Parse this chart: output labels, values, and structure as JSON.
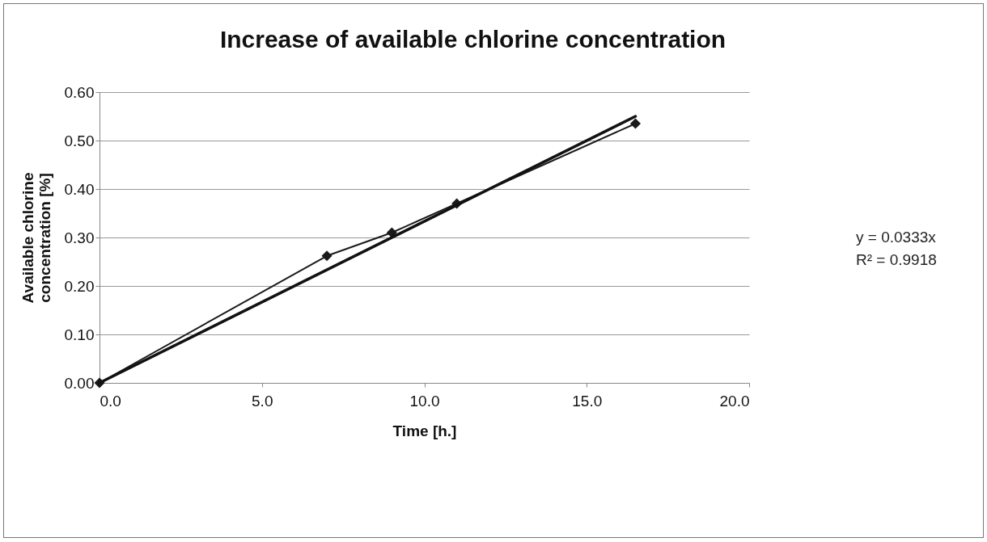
{
  "chart_data": {
    "type": "line",
    "title": "Increase of available chlorine concentration",
    "xlabel": "Time [h.]",
    "ylabel": "Available chlorine concentration [%]",
    "x": [
      0,
      7,
      9,
      11,
      16.5
    ],
    "series": [
      {
        "color": "#1a1a1a",
        "marker": "diamond",
        "values": [
          0,
          0.262,
          0.31,
          0.37,
          0.535
        ]
      },
      {
        "type": "line",
        "color": "#111111",
        "marker": "none",
        "x": [
          0,
          16.5
        ],
        "values": [
          0,
          0.55
        ]
      }
    ],
    "xlim": [
      0,
      20
    ],
    "xticks": [
      {
        "value": 0,
        "label": "0.0"
      },
      {
        "value": 5,
        "label": "5.0"
      },
      {
        "value": 10,
        "label": "10.0"
      },
      {
        "value": 15,
        "label": "15.0"
      },
      {
        "value": 20,
        "label": "20.0"
      }
    ],
    "ylim": [
      0,
      0.6
    ],
    "yticks": [
      {
        "value": 0,
        "label": "0.00"
      },
      {
        "value": 0.1,
        "label": "0.10"
      },
      {
        "value": 0.2,
        "label": "0.20"
      },
      {
        "value": 0.3,
        "label": "0.30"
      },
      {
        "value": 0.4,
        "label": "0.40"
      },
      {
        "value": 0.5,
        "label": "0.50"
      },
      {
        "value": 0.6,
        "label": "0.60"
      }
    ],
    "grid": "y",
    "annotations": [
      "y = 0.0333x",
      "R² = 0.9918"
    ]
  }
}
